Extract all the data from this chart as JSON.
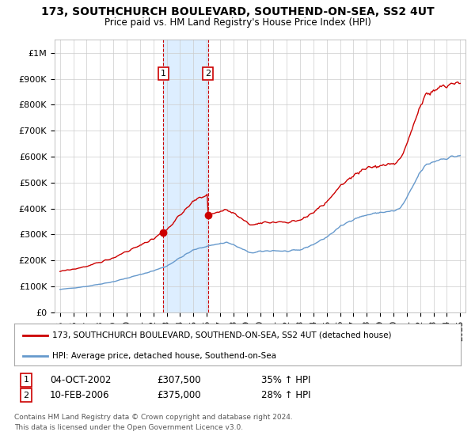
{
  "title": "173, SOUTHCHURCH BOULEVARD, SOUTHEND-ON-SEA, SS2 4UT",
  "subtitle": "Price paid vs. HM Land Registry's House Price Index (HPI)",
  "ylabel_ticks": [
    "£0",
    "£100K",
    "£200K",
    "£300K",
    "£400K",
    "£500K",
    "£600K",
    "£700K",
    "£800K",
    "£900K",
    "£1M"
  ],
  "ytick_values": [
    0,
    100000,
    200000,
    300000,
    400000,
    500000,
    600000,
    700000,
    800000,
    900000,
    1000000
  ],
  "ylim": [
    0,
    1050000
  ],
  "legend_line1": "173, SOUTHCHURCH BOULEVARD, SOUTHEND-ON-SEA, SS2 4UT (detached house)",
  "legend_line2": "HPI: Average price, detached house, Southend-on-Sea",
  "sale1_date": "04-OCT-2002",
  "sale1_price": "£307,500",
  "sale1_hpi": "35% ↑ HPI",
  "sale2_date": "10-FEB-2006",
  "sale2_price": "£375,000",
  "sale2_hpi": "28% ↑ HPI",
  "footnote1": "Contains HM Land Registry data © Crown copyright and database right 2024.",
  "footnote2": "This data is licensed under the Open Government Licence v3.0.",
  "red_color": "#cc0000",
  "blue_color": "#6699cc",
  "shade_color": "#ddeeff",
  "background_color": "#ffffff",
  "grid_color": "#cccccc",
  "sale1_x": 2002.75,
  "sale2_x": 2006.1,
  "sale1_price_val": 307500,
  "sale2_price_val": 375000
}
